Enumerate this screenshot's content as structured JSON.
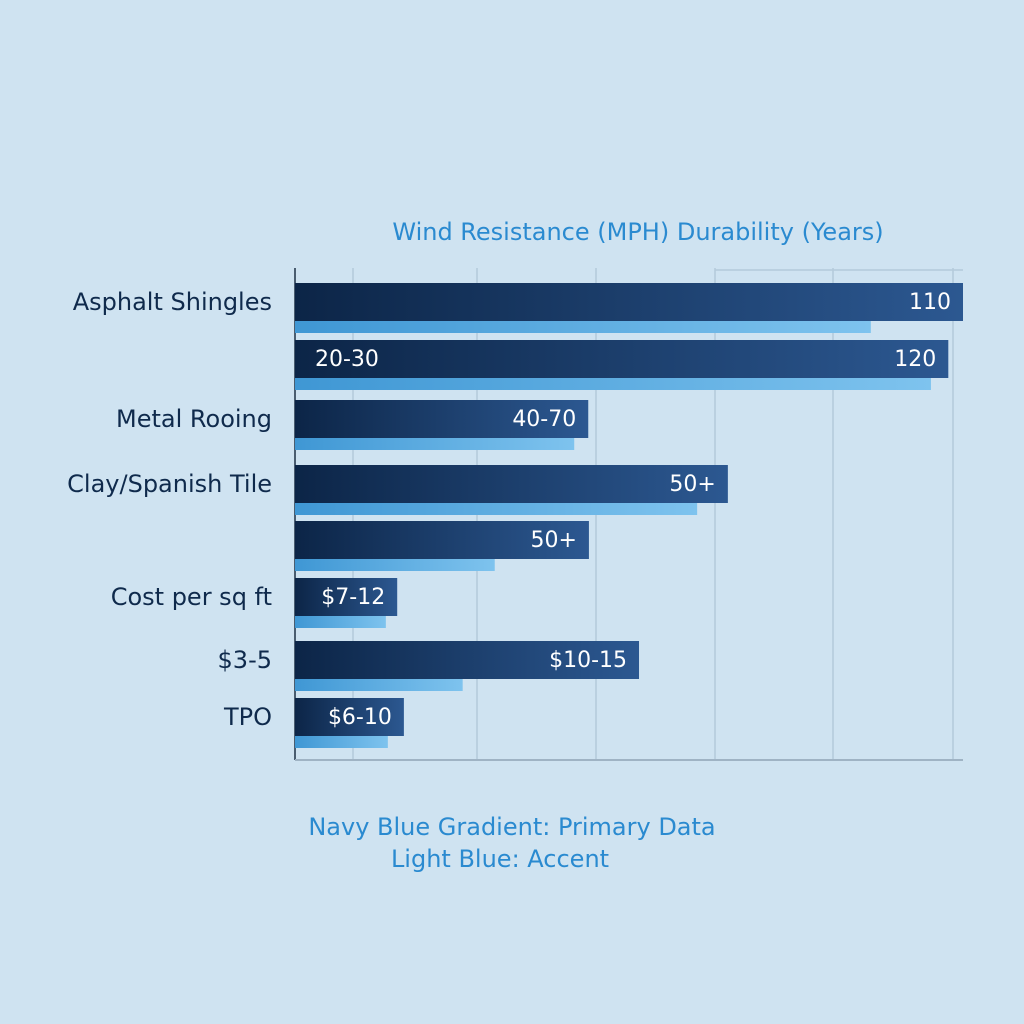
{
  "chart_data": {
    "type": "bar",
    "orientation": "horizontal",
    "title": "Wind Resistance (MPH) Durability (Years)",
    "categories": [
      "Asphalt Shingles",
      null,
      "Metal Rooing",
      "Clay/Spanish Tile",
      null,
      "Cost per sq ft",
      "$3-5",
      "TPO"
    ],
    "series": [
      {
        "name": "Navy Blue Gradient: Primary Data",
        "color": "#1b3e6e",
        "values": [
          100,
          97.8,
          43.9,
          64.8,
          44,
          15.3,
          51.5,
          16.3
        ]
      },
      {
        "name": "Light Blue: Accent",
        "color": "#5eaee3",
        "values": [
          86.2,
          95.2,
          41.8,
          60.2,
          29.9,
          13.6,
          25.1,
          13.9
        ]
      }
    ],
    "bar_end_texts": [
      "110",
      "120",
      "40-70",
      "50+",
      "50+",
      "$7-12",
      "$10-15",
      "$6-10"
    ],
    "bar_start_texts": [
      null,
      "20-30",
      null,
      null,
      null,
      null,
      null,
      null
    ],
    "xlim": [
      0,
      100
    ],
    "grid": true
  }
}
